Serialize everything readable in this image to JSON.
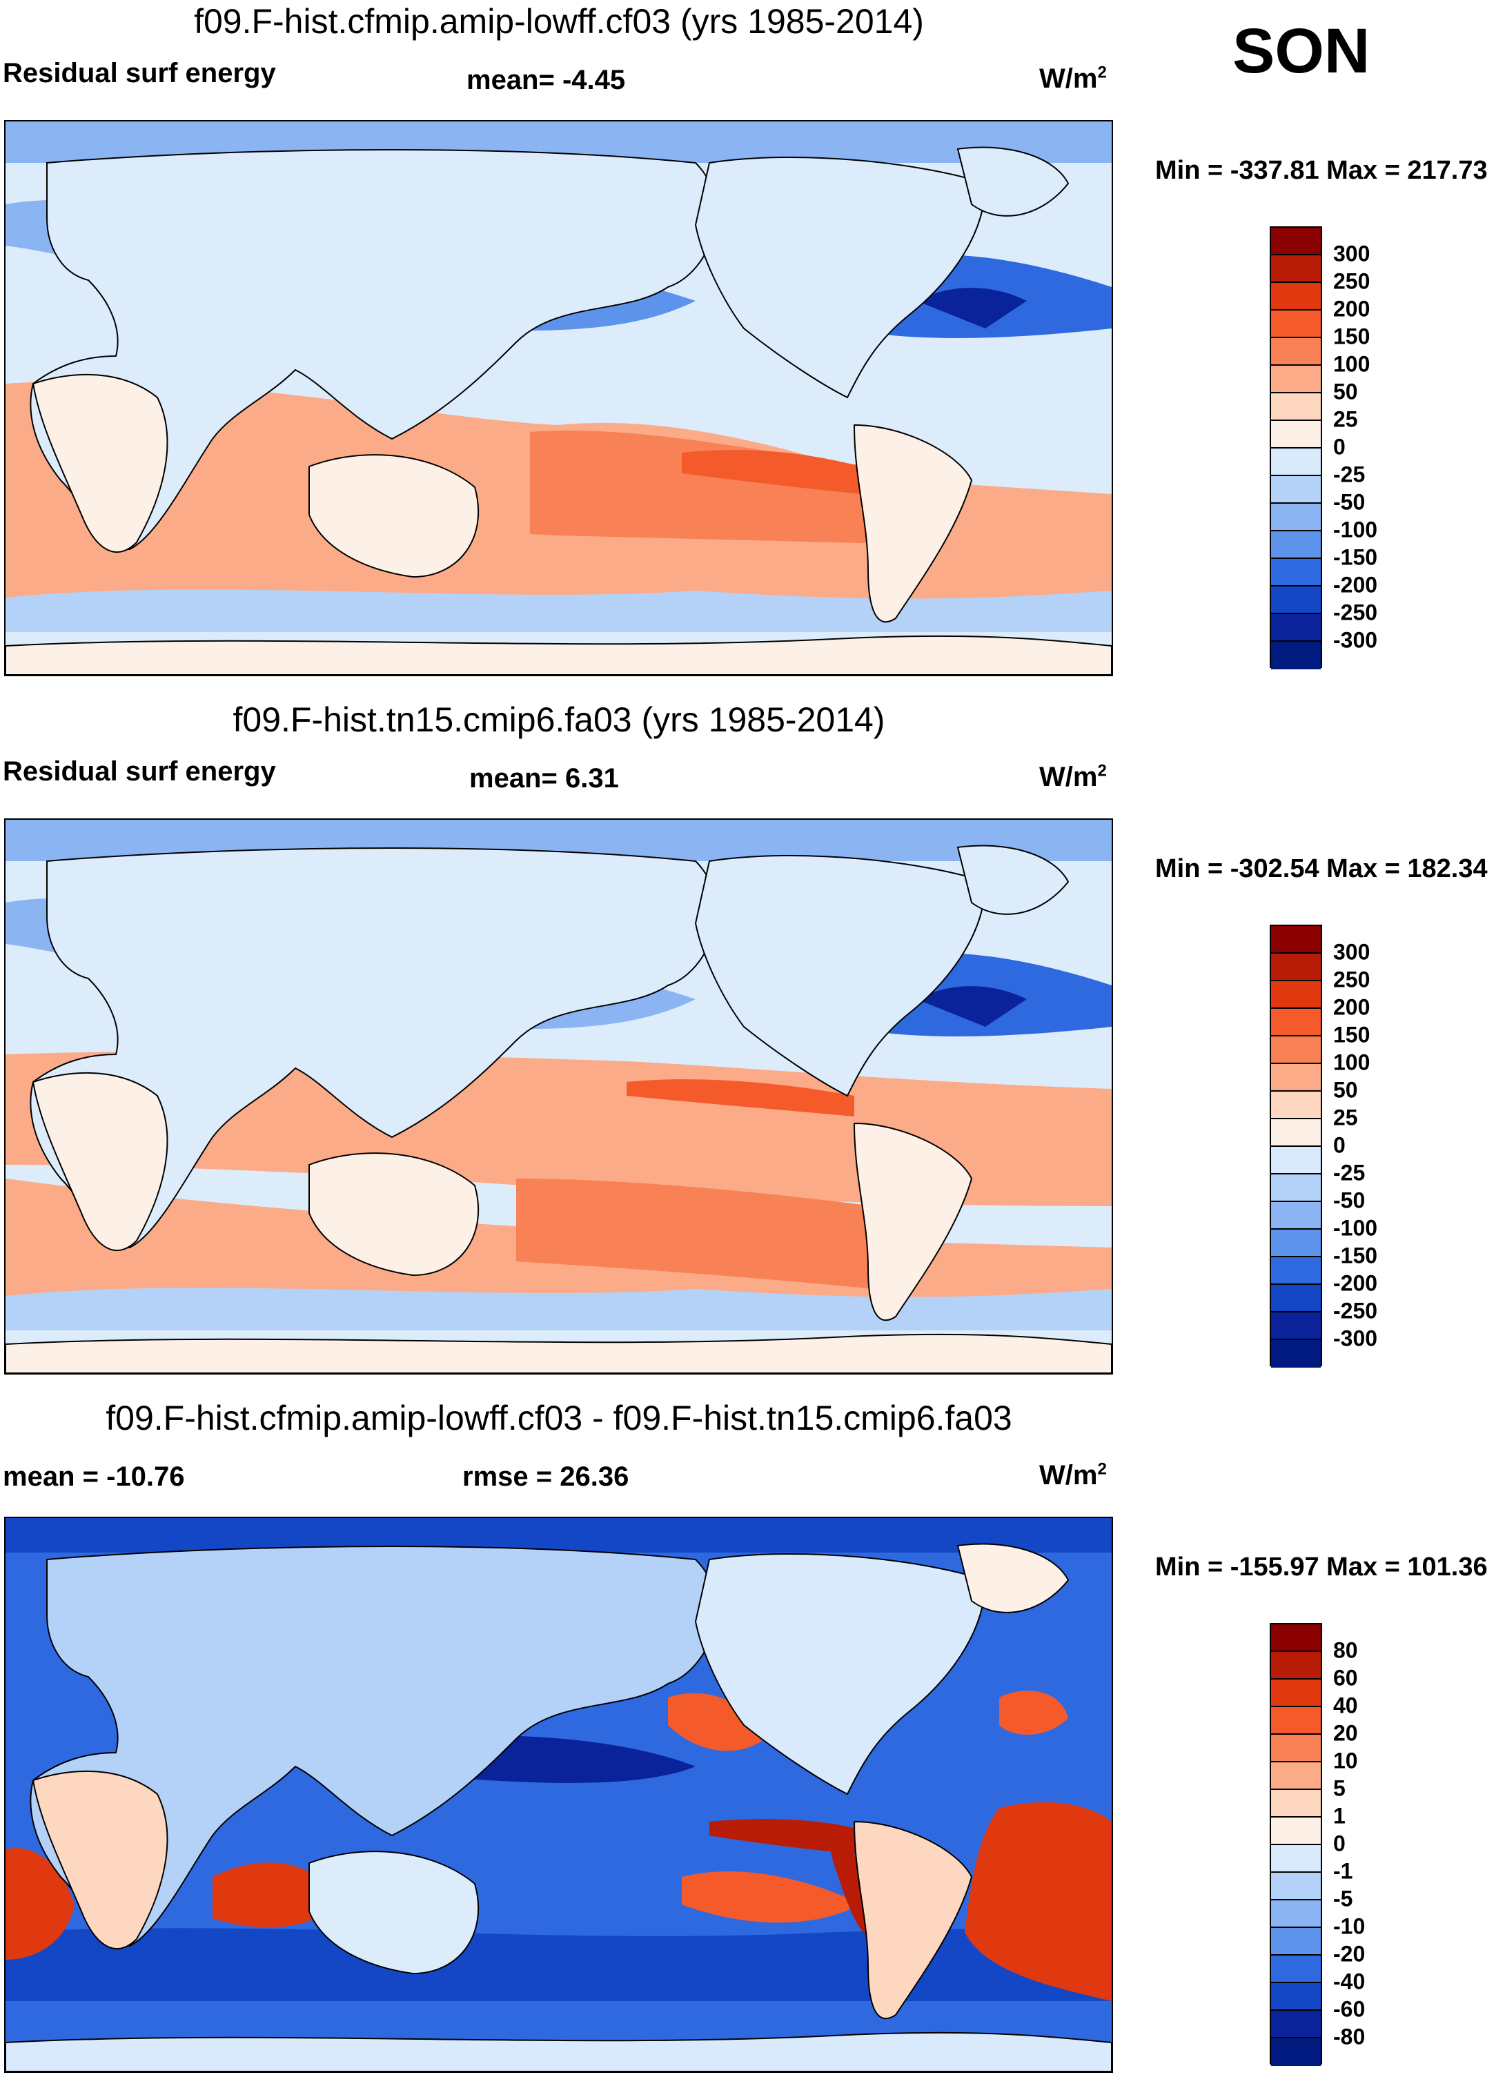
{
  "season": "SON",
  "units_base": "W/m",
  "units_exp": "2",
  "panels": [
    {
      "title": "f09.F-hist.cfmip.amip-lowff.cf03 (yrs 1985-2014)",
      "left_label": "Residual surf energy",
      "center_label": "mean=  -4.45",
      "minmax": "Min = -337.81 Max = 217.73",
      "colorbar_labels": [
        "300",
        "250",
        "200",
        "150",
        "100",
        "50",
        "25",
        "0",
        "-25",
        "-50",
        "-100",
        "-150",
        "-200",
        "-250",
        "-300"
      ]
    },
    {
      "title": "f09.F-hist.tn15.cmip6.fa03 (yrs 1985-2014)",
      "left_label": "Residual surf energy",
      "center_label": "mean=   6.31",
      "minmax": "Min = -302.54 Max = 182.34",
      "colorbar_labels": [
        "300",
        "250",
        "200",
        "150",
        "100",
        "50",
        "25",
        "0",
        "-25",
        "-50",
        "-100",
        "-150",
        "-200",
        "-250",
        "-300"
      ]
    },
    {
      "title": "f09.F-hist.cfmip.amip-lowff.cf03 - f09.F-hist.tn15.cmip6.fa03",
      "left_label": "mean = -10.76",
      "center_label": "rmse =  26.36",
      "minmax": "Min = -155.97 Max = 101.36",
      "colorbar_labels": [
        "80",
        "60",
        "40",
        "20",
        "10",
        "5",
        "1",
        "0",
        "-1",
        "-5",
        "-10",
        "-20",
        "-40",
        "-60",
        "-80"
      ]
    }
  ],
  "colors": [
    "#8b0000",
    "#b81c06",
    "#e0380f",
    "#f55a2a",
    "#f98156",
    "#fbab88",
    "#fdd7c0",
    "#fdf0e6",
    "#d8eafb",
    "#b4d2f8",
    "#8ab4f2",
    "#5e93ec",
    "#2f69e0",
    "#1447c6",
    "#0a239a",
    "#001a80"
  ]
}
